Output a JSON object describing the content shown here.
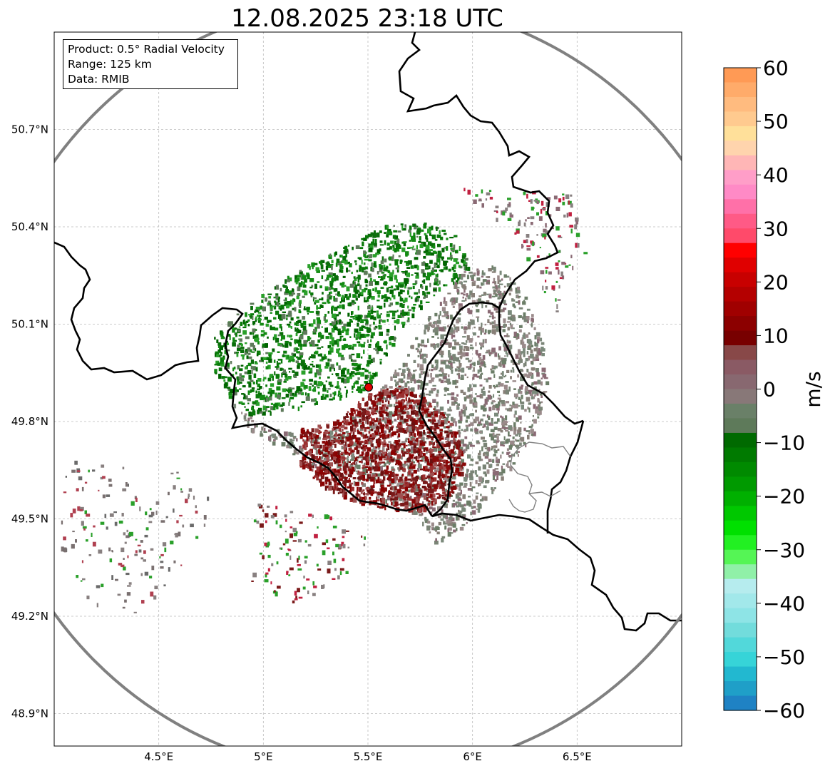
{
  "title": "12.08.2025 23:18 UTC",
  "info_box": {
    "line1": "Product: 0.5° Radial Velocity",
    "line2": "Range: 125 km",
    "line3": "Data: RMIB"
  },
  "map": {
    "lon_range": [
      4.0,
      7.0
    ],
    "lat_range": [
      48.8,
      51.0
    ],
    "radar_site": {
      "lon": 5.505,
      "lat": 49.914
    },
    "range_ring_color": "#808080",
    "border_color": "#000000",
    "grid": true,
    "x_ticks": [
      {
        "value": 4.5,
        "label": "4.5°E"
      },
      {
        "value": 5.0,
        "label": "5°E"
      },
      {
        "value": 5.5,
        "label": "5.5°E"
      },
      {
        "value": 6.0,
        "label": "6°E"
      },
      {
        "value": 6.5,
        "label": "6.5°E"
      }
    ],
    "y_ticks": [
      {
        "value": 50.7,
        "label": "50.7°N"
      },
      {
        "value": 50.4,
        "label": "50.4°N"
      },
      {
        "value": 50.1,
        "label": "50.1°N"
      },
      {
        "value": 49.8,
        "label": "49.8°N"
      },
      {
        "value": 49.5,
        "label": "49.5°N"
      },
      {
        "value": 49.2,
        "label": "49.2°N"
      },
      {
        "value": 48.9,
        "label": "48.9°N"
      }
    ],
    "echo_regions": [
      {
        "name": "inbound-green",
        "color": "#0a7a0a"
      },
      {
        "name": "near-zero-grey",
        "color": "#7b8a7b"
      },
      {
        "name": "outbound-maroon",
        "color": "#7a1a1a"
      }
    ]
  },
  "colorbar": {
    "label": "m/s",
    "vmin": -60,
    "vmax": 60,
    "ticks": [
      {
        "value": 60,
        "label": "60"
      },
      {
        "value": 50,
        "label": "50"
      },
      {
        "value": 40,
        "label": "40"
      },
      {
        "value": 30,
        "label": "30"
      },
      {
        "value": 20,
        "label": "20"
      },
      {
        "value": 10,
        "label": "10"
      },
      {
        "value": 0,
        "label": "0"
      },
      {
        "value": -10,
        "label": "−10"
      },
      {
        "value": -20,
        "label": "−20"
      },
      {
        "value": -30,
        "label": "−30"
      },
      {
        "value": -40,
        "label": "−40"
      },
      {
        "value": -50,
        "label": "−50"
      },
      {
        "value": -60,
        "label": "−60"
      }
    ],
    "colors_top_to_bottom": [
      "#ff9a55",
      "#ffab6a",
      "#ffbb7f",
      "#ffca8f",
      "#ffe09a",
      "#ffd4ad",
      "#ffb6b6",
      "#ff9ec8",
      "#ff8ac6",
      "#ff70a8",
      "#ff5a86",
      "#ff4a6a",
      "#ff0000",
      "#e00000",
      "#c80000",
      "#b40000",
      "#a00000",
      "#8c0000",
      "#780000",
      "#884848",
      "#8a5a64",
      "#886870",
      "#887878",
      "#6a8068",
      "#5e7a5a",
      "#006a00",
      "#007a00",
      "#008a00",
      "#009a00",
      "#00b000",
      "#00c800",
      "#00e000",
      "#22f022",
      "#55f555",
      "#90f0a8",
      "#b6ecee",
      "#a2e8ea",
      "#8ee4e6",
      "#72dcdc",
      "#52d8da",
      "#36d4d8",
      "#22b8d0",
      "#1f9fc8",
      "#1f82c4"
    ]
  }
}
